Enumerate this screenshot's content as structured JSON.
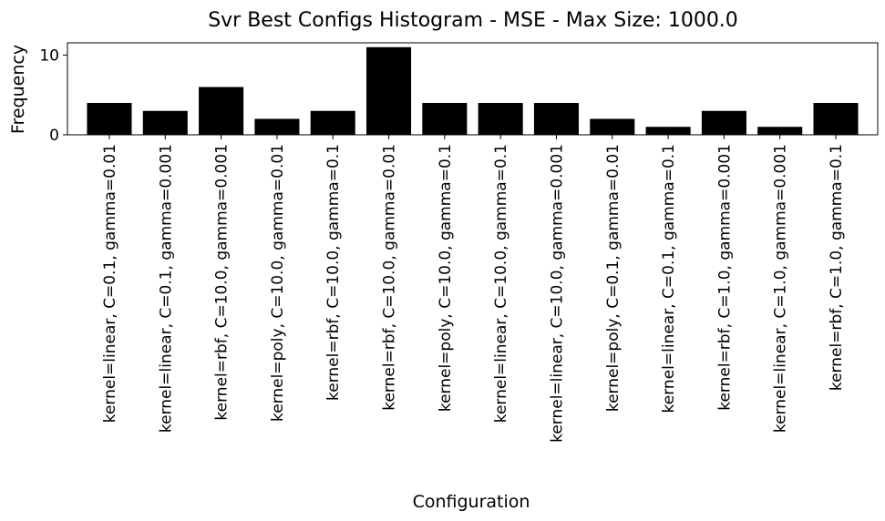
{
  "chart_data": {
    "type": "bar",
    "title": "Svr Best Configs Histogram - MSE - Max Size: 1000.0",
    "xlabel": "Configuration",
    "ylabel": "Frequency",
    "categories": [
      "kernel=linear, C=0.1, gamma=0.01",
      "kernel=linear, C=0.1, gamma=0.001",
      "kernel=rbf, C=10.0, gamma=0.001",
      "kernel=poly, C=10.0, gamma=0.01",
      "kernel=rbf, C=10.0, gamma=0.1",
      "kernel=rbf, C=10.0, gamma=0.01",
      "kernel=poly, C=10.0, gamma=0.1",
      "kernel=linear, C=10.0, gamma=0.1",
      "kernel=linear, C=10.0, gamma=0.001",
      "kernel=poly, C=0.1, gamma=0.01",
      "kernel=linear, C=0.1, gamma=0.1",
      "kernel=rbf, C=1.0, gamma=0.001",
      "kernel=linear, C=1.0, gamma=0.001",
      "kernel=rbf, C=1.0, gamma=0.1"
    ],
    "values": [
      4,
      3,
      6,
      2,
      3,
      11,
      4,
      4,
      4,
      2,
      1,
      3,
      1,
      4
    ],
    "yticks": [
      0,
      10
    ],
    "ylim": [
      0,
      11.55
    ],
    "grid": false,
    "bar_color": "#000000"
  }
}
